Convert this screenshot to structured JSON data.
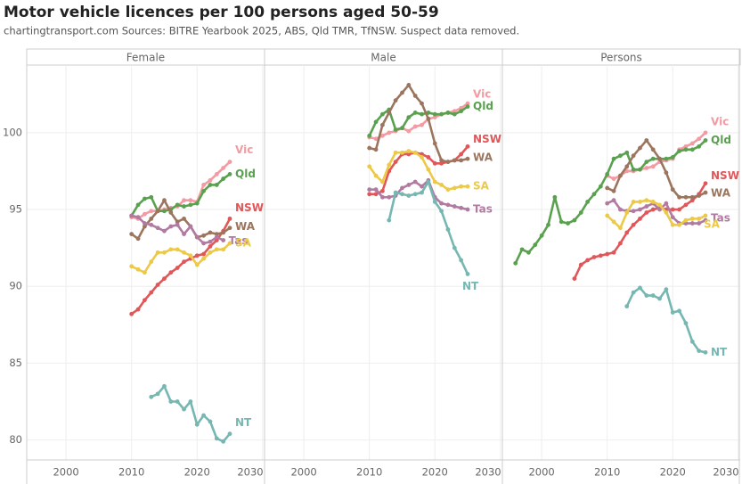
{
  "title": "Motor vehicle licences per 100 persons aged 50-59",
  "subtitle": "chartingtransport.com  Sources: BITRE Yearbook 2025, ABS, Qld TMR, TfNSW. Suspect data removed.",
  "chart_data": [
    {
      "type": "line",
      "title": "Female",
      "x": [
        2010,
        2011,
        2012,
        2013,
        2014,
        2015,
        2016,
        2017,
        2018,
        2019,
        2020,
        2021,
        2022,
        2023,
        2024,
        2025
      ],
      "xlim": [
        1994,
        2030.3
      ],
      "xticks": [
        2000,
        2010,
        2020,
        2030
      ],
      "ylim": [
        78.7,
        104.4
      ],
      "yticks": [
        80,
        85,
        90,
        95,
        100
      ],
      "grid": true,
      "series": [
        {
          "name": "Vic",
          "color": "#f49aa2",
          "values": [
            94.5,
            94.4,
            94.7,
            94.9,
            94.9,
            95.0,
            95.1,
            95.2,
            95.6,
            95.6,
            95.5,
            96.6,
            96.9,
            97.3,
            97.7,
            98.1
          ]
        },
        {
          "name": "Qld",
          "color": "#59a14f",
          "values": [
            94.6,
            95.3,
            95.7,
            95.8,
            94.9,
            94.9,
            95.0,
            95.3,
            95.2,
            95.3,
            95.4,
            96.2,
            96.6,
            96.6,
            97.0,
            97.3
          ]
        },
        {
          "name": "NSW",
          "color": "#e15759",
          "values": [
            88.2,
            88.5,
            89.1,
            89.6,
            90.1,
            90.5,
            90.9,
            91.2,
            91.6,
            91.8,
            92.0,
            92.1,
            92.6,
            93.0,
            93.6,
            94.4
          ]
        },
        {
          "name": "WA",
          "color": "#9c755f",
          "values": [
            93.4,
            93.1,
            93.9,
            94.4,
            94.9,
            95.6,
            94.8,
            94.2,
            94.4,
            93.9,
            93.2,
            93.3,
            93.5,
            93.4,
            93.5,
            93.8
          ]
        },
        {
          "name": "Tas",
          "color": "#b07aa1",
          "values": [
            94.6,
            94.5,
            94.1,
            94.0,
            93.8,
            93.6,
            93.9,
            94.0,
            93.4,
            93.9,
            93.2,
            92.8,
            92.9,
            93.2,
            93.0,
            null
          ]
        },
        {
          "name": "SA",
          "color": "#edc948",
          "values": [
            91.3,
            91.1,
            90.9,
            91.6,
            92.2,
            92.2,
            92.4,
            92.4,
            92.2,
            92.0,
            91.4,
            91.8,
            92.2,
            92.4,
            92.4,
            92.8
          ]
        },
        {
          "name": "NT",
          "color": "#76b7b2",
          "values": [
            null,
            null,
            null,
            82.8,
            83.0,
            83.5,
            82.5,
            82.5,
            82.0,
            82.5,
            81.0,
            81.6,
            81.2,
            80.1,
            79.9,
            80.4
          ]
        }
      ]
    },
    {
      "type": "line",
      "title": "Male",
      "x": [
        2010,
        2011,
        2012,
        2013,
        2014,
        2015,
        2016,
        2017,
        2018,
        2019,
        2020,
        2021,
        2022,
        2023,
        2024,
        2025
      ],
      "xlim": [
        1994,
        2030.3
      ],
      "xticks": [
        2000,
        2010,
        2020,
        2030
      ],
      "ylim": [
        78.7,
        104.4
      ],
      "yticks": [
        80,
        85,
        90,
        95,
        100
      ],
      "grid": true,
      "series": [
        {
          "name": "Vic",
          "color": "#f49aa2",
          "values": [
            99.7,
            99.6,
            99.8,
            100.0,
            100.1,
            100.3,
            100.1,
            100.4,
            100.5,
            100.9,
            101.0,
            101.2,
            101.3,
            101.4,
            101.6,
            101.9
          ]
        },
        {
          "name": "Qld",
          "color": "#59a14f",
          "values": [
            99.8,
            100.7,
            101.2,
            101.5,
            100.2,
            100.3,
            101.0,
            101.3,
            101.2,
            101.3,
            101.2,
            101.2,
            101.3,
            101.2,
            101.4,
            101.7
          ]
        },
        {
          "name": "NSW",
          "color": "#e15759",
          "values": [
            96.0,
            96.0,
            96.2,
            97.5,
            98.1,
            98.6,
            98.6,
            98.7,
            98.6,
            98.4,
            98.0,
            98.0,
            98.1,
            98.2,
            98.6,
            99.1
          ]
        },
        {
          "name": "WA",
          "color": "#9c755f",
          "values": [
            99.0,
            98.9,
            100.5,
            101.3,
            102.1,
            102.6,
            103.1,
            102.4,
            101.9,
            100.9,
            99.3,
            98.2,
            98.1,
            98.2,
            98.2,
            98.3
          ]
        },
        {
          "name": "SA",
          "color": "#edc948",
          "values": [
            97.8,
            97.2,
            96.8,
            97.9,
            98.7,
            98.7,
            98.8,
            98.7,
            98.4,
            97.6,
            96.8,
            96.6,
            96.3,
            96.4,
            96.5,
            96.5
          ]
        },
        {
          "name": "Tas",
          "color": "#b07aa1",
          "values": [
            96.3,
            96.3,
            95.8,
            95.8,
            95.9,
            96.4,
            96.6,
            96.8,
            96.5,
            96.9,
            95.8,
            95.4,
            95.3,
            95.2,
            95.1,
            95.0
          ]
        },
        {
          "name": "NT",
          "color": "#76b7b2",
          "values": [
            null,
            null,
            null,
            94.3,
            96.1,
            96.0,
            95.9,
            96.0,
            96.1,
            96.8,
            95.5,
            94.9,
            93.7,
            92.5,
            91.7,
            90.8
          ]
        }
      ]
    },
    {
      "type": "line",
      "title": "Persons",
      "x": [
        1996,
        1997,
        1998,
        1999,
        2000,
        2001,
        2002,
        2003,
        2004,
        2005,
        2006,
        2007,
        2008,
        2009,
        2010,
        2011,
        2012,
        2013,
        2014,
        2015,
        2016,
        2017,
        2018,
        2019,
        2020,
        2021,
        2022,
        2023,
        2024,
        2025
      ],
      "xlim": [
        1994,
        2030.3
      ],
      "xticks": [
        2000,
        2010,
        2020,
        2030
      ],
      "ylim": [
        78.7,
        104.4
      ],
      "yticks": [
        80,
        85,
        90,
        95,
        100
      ],
      "grid": true,
      "series": [
        {
          "name": "Vic",
          "color": "#f49aa2",
          "values": [
            null,
            null,
            null,
            null,
            null,
            null,
            null,
            null,
            null,
            null,
            null,
            null,
            null,
            null,
            97.2,
            97.0,
            97.2,
            97.5,
            97.5,
            97.6,
            97.7,
            97.8,
            98.1,
            98.2,
            98.3,
            98.9,
            99.1,
            99.3,
            99.6,
            100.0
          ]
        },
        {
          "name": "Qld",
          "color": "#59a14f",
          "values": [
            91.5,
            92.4,
            92.2,
            92.7,
            93.3,
            94.0,
            95.8,
            94.2,
            94.1,
            94.3,
            94.8,
            95.5,
            96.0,
            96.5,
            97.3,
            98.3,
            98.5,
            98.7,
            97.6,
            97.6,
            98.1,
            98.3,
            98.3,
            98.3,
            98.4,
            98.8,
            98.9,
            98.9,
            99.1,
            99.5
          ]
        },
        {
          "name": "NSW",
          "color": "#e15759",
          "values": [
            null,
            null,
            null,
            null,
            null,
            null,
            null,
            null,
            null,
            90.5,
            91.4,
            91.7,
            91.9,
            92.0,
            92.1,
            92.2,
            92.8,
            93.5,
            94.0,
            94.4,
            94.8,
            95.0,
            95.1,
            95.0,
            95.0,
            95.0,
            95.3,
            95.6,
            96.0,
            96.7
          ]
        },
        {
          "name": "WA",
          "color": "#9c755f",
          "values": [
            null,
            null,
            null,
            null,
            null,
            null,
            null,
            null,
            null,
            null,
            null,
            null,
            null,
            null,
            96.4,
            96.2,
            97.2,
            97.8,
            98.5,
            99.0,
            99.5,
            98.9,
            98.3,
            97.4,
            96.3,
            95.8,
            95.8,
            95.8,
            95.9,
            96.1
          ]
        },
        {
          "name": "Tas",
          "color": "#b07aa1",
          "values": [
            null,
            null,
            null,
            null,
            null,
            null,
            null,
            null,
            null,
            null,
            null,
            null,
            null,
            null,
            95.4,
            95.6,
            95.0,
            94.9,
            94.9,
            95.0,
            95.2,
            95.4,
            95.0,
            95.4,
            94.5,
            94.1,
            94.1,
            94.1,
            94.1,
            94.3
          ]
        },
        {
          "name": "SA",
          "color": "#edc948",
          "values": [
            null,
            null,
            null,
            null,
            null,
            null,
            null,
            null,
            null,
            null,
            null,
            null,
            null,
            null,
            94.6,
            94.2,
            93.8,
            94.8,
            95.5,
            95.5,
            95.6,
            95.5,
            95.3,
            94.8,
            94.0,
            94.0,
            94.3,
            94.4,
            94.4,
            94.6
          ]
        },
        {
          "name": "NT",
          "color": "#76b7b2",
          "values": [
            null,
            null,
            null,
            null,
            null,
            null,
            null,
            null,
            null,
            null,
            null,
            null,
            null,
            null,
            null,
            null,
            null,
            88.7,
            89.6,
            89.9,
            89.4,
            89.4,
            89.2,
            89.8,
            88.3,
            88.4,
            87.6,
            86.4,
            85.8,
            85.7
          ]
        }
      ]
    }
  ]
}
